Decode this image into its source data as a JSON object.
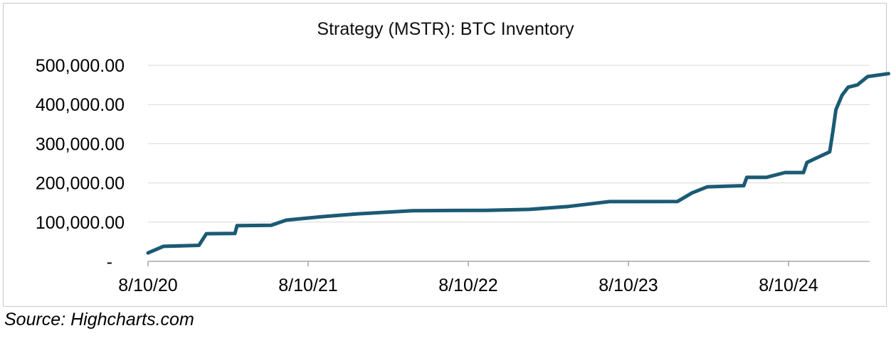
{
  "chart_data": {
    "type": "line",
    "title": "Strategy (MSTR): BTC Inventory",
    "xlabel": "",
    "ylabel": "",
    "x_ticks": [
      "8/10/20",
      "8/10/21",
      "8/10/22",
      "8/10/23",
      "8/10/24"
    ],
    "y_ticks": [
      "-",
      "100,000.00",
      "200,000.00",
      "300,000.00",
      "400,000.00",
      "500,000.00"
    ],
    "ylim": [
      0,
      500000
    ],
    "xlim": [
      "2020-08-10",
      "2025-03-25"
    ],
    "grid": true,
    "legend": "none",
    "series": [
      {
        "color": "#1b5a74",
        "points": [
          {
            "x": "2020-08-10",
            "y": 21454
          },
          {
            "x": "2020-09-14",
            "y": 38250
          },
          {
            "x": "2020-12-04",
            "y": 40824
          },
          {
            "x": "2020-12-21",
            "y": 70470
          },
          {
            "x": "2021-02-24",
            "y": 71079
          },
          {
            "x": "2021-03-01",
            "y": 91064
          },
          {
            "x": "2021-05-18",
            "y": 92079
          },
          {
            "x": "2021-06-21",
            "y": 105085
          },
          {
            "x": "2021-09-13",
            "y": 114042
          },
          {
            "x": "2021-11-29",
            "y": 121044
          },
          {
            "x": "2022-01-31",
            "y": 125051
          },
          {
            "x": "2022-04-05",
            "y": 129218
          },
          {
            "x": "2022-09-20",
            "y": 130000
          },
          {
            "x": "2022-12-27",
            "y": 132500
          },
          {
            "x": "2023-03-27",
            "y": 140000
          },
          {
            "x": "2023-06-28",
            "y": 152333
          },
          {
            "x": "2023-11-30",
            "y": 152800
          },
          {
            "x": "2024-01-02",
            "y": 174530
          },
          {
            "x": "2024-02-06",
            "y": 190000
          },
          {
            "x": "2024-04-29",
            "y": 193000
          },
          {
            "x": "2024-05-06",
            "y": 214246
          },
          {
            "x": "2024-06-20",
            "y": 214400
          },
          {
            "x": "2024-08-01",
            "y": 226500
          },
          {
            "x": "2024-09-12",
            "y": 226500
          },
          {
            "x": "2024-09-20",
            "y": 252220
          },
          {
            "x": "2024-11-11",
            "y": 279420
          },
          {
            "x": "2024-11-18",
            "y": 331200
          },
          {
            "x": "2024-11-25",
            "y": 386700
          },
          {
            "x": "2024-12-09",
            "y": 423650
          },
          {
            "x": "2024-12-23",
            "y": 444262
          },
          {
            "x": "2025-01-13",
            "y": 450000
          },
          {
            "x": "2025-02-05",
            "y": 471107
          },
          {
            "x": "2025-03-25",
            "y": 478740
          }
        ]
      }
    ]
  },
  "source": "Source: Highcharts.com"
}
